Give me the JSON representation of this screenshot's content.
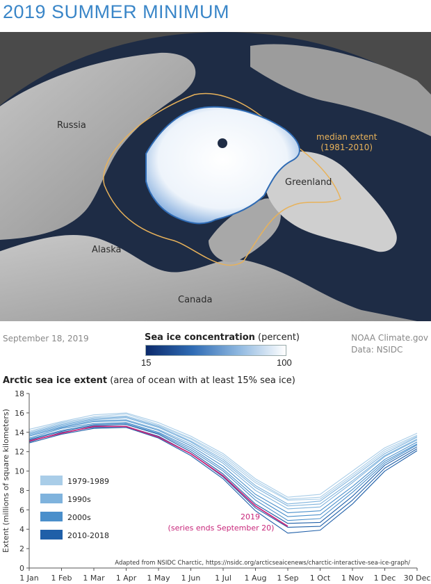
{
  "page": {
    "title": "2019 SUMMER MINIMUM",
    "date": "September 18, 2019",
    "credit_line1": "NOAA Climate.gov",
    "credit_line2": "Data: NSIDC"
  },
  "map": {
    "labels": {
      "russia": "Russia",
      "greenland": "Greenland",
      "alaska": "Alaska",
      "canada": "Canada"
    },
    "median_label_line1": "median extent",
    "median_label_line2": "(1981-2010)",
    "colors": {
      "ocean": "#1e2c45",
      "land": "#b9b9b9",
      "median": "#e8b25a",
      "ice": "#ffffff",
      "ice_edge": "#2f6bb4"
    }
  },
  "colorbar": {
    "title_bold": "Sea ice concentration",
    "title_rest": " (percent)",
    "min": "15",
    "max": "100"
  },
  "chart_data": {
    "type": "line",
    "title_bold": "Arctic sea ice extent",
    "title_rest": " (area of ocean with at least 15% sea ice)",
    "ylabel": "Extent (millions of square kilometers)",
    "ylim": [
      0,
      18
    ],
    "yticks": [
      "0",
      "2",
      "4",
      "6",
      "8",
      "10",
      "12",
      "14",
      "16",
      "18"
    ],
    "xticks": [
      "1 Jan",
      "1 Feb",
      "1 Mar",
      "1 Apr",
      "1 May",
      "1 Jun",
      "1 Jul",
      "1 Aug",
      "1 Sep",
      "1 Oct",
      "1 Nov",
      "1 Dec",
      "30 Dec"
    ],
    "grid": false,
    "legend": {
      "placement": "lower-left",
      "items": [
        {
          "label": "1979-1989",
          "color": "#a9cde8"
        },
        {
          "label": "1990s",
          "color": "#7fb3dd"
        },
        {
          "label": "2000s",
          "color": "#4a8fcb"
        },
        {
          "label": "2010-2018",
          "color": "#1f5fa8"
        }
      ]
    },
    "annotation": {
      "line1": "2019",
      "line2": "(series ends September 20)",
      "color": "#c8277b"
    },
    "source": "Adapted from NSIDC Charctic, https://nsidc.org/arcticseaicenews/charctic-interactive-sea-ice-graph/",
    "series": [
      {
        "group": "1979-1989",
        "values": [
          14.3,
          15.1,
          15.8,
          16.0,
          15.0,
          13.6,
          11.8,
          9.2,
          7.3,
          7.6,
          10.0,
          12.4,
          13.9
        ]
      },
      {
        "group": "1979-1989",
        "values": [
          14.1,
          15.0,
          15.6,
          15.9,
          14.8,
          13.4,
          11.6,
          9.0,
          7.1,
          7.3,
          9.7,
          12.2,
          13.7
        ]
      },
      {
        "group": "1979-1989",
        "values": [
          14.0,
          14.9,
          15.5,
          15.7,
          14.7,
          13.3,
          11.4,
          8.8,
          7.0,
          7.1,
          9.5,
          12.0,
          13.6
        ]
      },
      {
        "group": "1990s",
        "values": [
          13.9,
          14.8,
          15.4,
          15.6,
          14.6,
          13.1,
          11.2,
          8.5,
          6.6,
          6.9,
          9.3,
          11.8,
          13.5
        ]
      },
      {
        "group": "1990s",
        "values": [
          13.8,
          14.7,
          15.3,
          15.5,
          14.5,
          13.0,
          11.0,
          8.3,
          6.4,
          6.6,
          9.0,
          11.6,
          13.3
        ]
      },
      {
        "group": "1990s",
        "values": [
          13.7,
          14.6,
          15.2,
          15.3,
          14.3,
          12.8,
          10.8,
          8.0,
          6.1,
          6.3,
          8.8,
          11.5,
          13.2
        ]
      },
      {
        "group": "2000s",
        "values": [
          13.6,
          14.5,
          15.1,
          15.2,
          14.2,
          12.6,
          10.5,
          7.6,
          5.7,
          5.9,
          8.4,
          11.2,
          13.0
        ]
      },
      {
        "group": "2000s",
        "values": [
          13.4,
          14.4,
          14.9,
          15.0,
          14.0,
          12.4,
          10.2,
          7.3,
          5.3,
          5.5,
          8.1,
          11.0,
          12.8
        ]
      },
      {
        "group": "2000s",
        "values": [
          13.3,
          14.2,
          14.8,
          14.9,
          13.9,
          12.2,
          10.0,
          7.0,
          4.9,
          5.1,
          7.8,
          10.8,
          12.7
        ]
      },
      {
        "group": "2010-2018",
        "values": [
          13.2,
          14.1,
          14.7,
          14.8,
          13.8,
          12.0,
          9.7,
          6.6,
          4.6,
          4.7,
          7.4,
          10.6,
          12.5
        ]
      },
      {
        "group": "2010-2018",
        "values": [
          13.0,
          14.0,
          14.5,
          14.6,
          13.6,
          11.8,
          9.4,
          6.2,
          4.2,
          4.3,
          7.0,
          10.3,
          12.3
        ]
      },
      {
        "group": "2010-2018",
        "values": [
          12.9,
          13.8,
          14.4,
          14.5,
          13.4,
          11.6,
          9.2,
          5.9,
          3.6,
          3.9,
          6.6,
          10.0,
          12.1
        ]
      },
      {
        "group": "2019",
        "values": [
          13.1,
          13.9,
          14.6,
          14.6,
          13.5,
          11.8,
          9.5,
          6.4,
          4.3
        ]
      }
    ]
  }
}
